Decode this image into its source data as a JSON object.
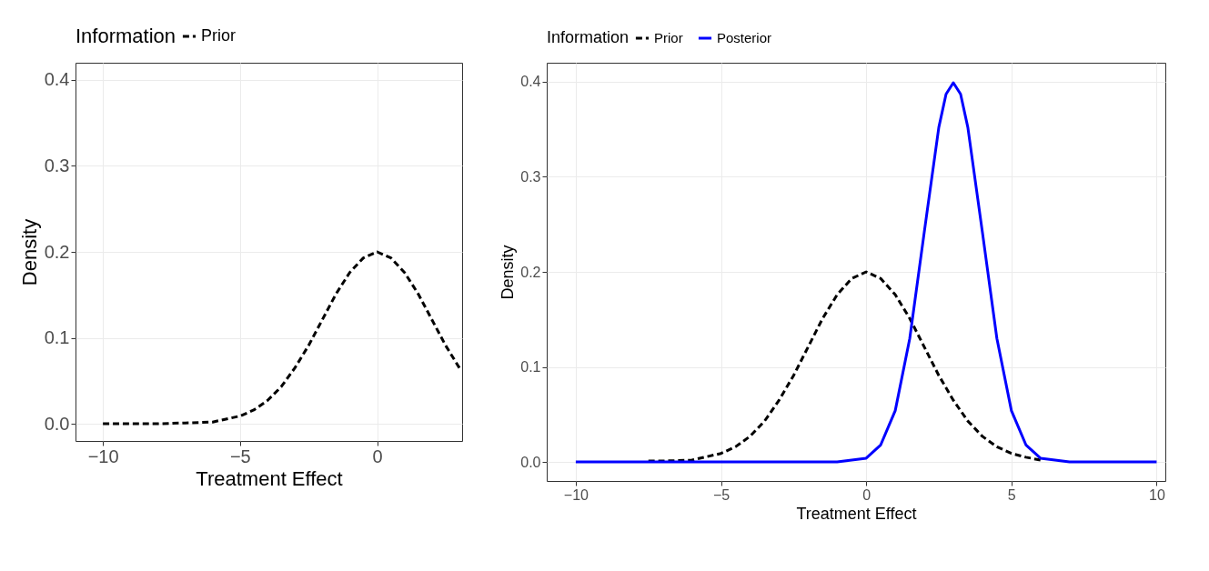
{
  "chart_data": [
    {
      "type": "line",
      "xlabel": "Treatment Effect",
      "ylabel": "Density",
      "legend_title": "Information",
      "legend": "top",
      "grid": true,
      "xlim": [
        -11,
        3.1
      ],
      "ylim": [
        -0.02,
        0.42
      ],
      "xticks": [
        -10,
        -5,
        0
      ],
      "yticks": [
        {
          "value": 0,
          "label": "0.0"
        },
        0.1,
        0.2,
        0.3,
        0.4
      ],
      "series": [
        {
          "name": "Prior",
          "color": "#000000",
          "line_style": "dashed",
          "x": [
            -10,
            -8,
            -7,
            -6,
            -5,
            -4.5,
            -4,
            -3.5,
            -3,
            -2.5,
            -2,
            -1.5,
            -1,
            -0.5,
            0,
            0.5,
            1,
            1.5,
            2,
            2.5,
            3
          ],
          "values": [
            0,
            0,
            0.001,
            0.002,
            0.009,
            0.016,
            0.027,
            0.043,
            0.065,
            0.091,
            0.121,
            0.151,
            0.176,
            0.193,
            0.2,
            0.193,
            0.176,
            0.151,
            0.121,
            0.091,
            0.065
          ]
        }
      ]
    },
    {
      "type": "line",
      "xlabel": "Treatment Effect",
      "ylabel": "Density",
      "legend_title": "Information",
      "legend": "top",
      "grid": true,
      "xlim": [
        -11,
        10.3
      ],
      "ylim": [
        -0.02,
        0.42
      ],
      "xticks": [
        -10,
        -5,
        0,
        5,
        10
      ],
      "yticks": [
        {
          "value": 0,
          "label": "0.0"
        },
        0.1,
        0.2,
        0.3,
        0.4
      ],
      "series": [
        {
          "name": "Prior",
          "color": "#000000",
          "line_style": "dashed",
          "x": [
            -7.5,
            -7,
            -6,
            -5,
            -4.5,
            -4,
            -3.5,
            -3,
            -2.5,
            -2,
            -1.5,
            -1,
            -0.5,
            0,
            0.5,
            1,
            1.5,
            2,
            2.5,
            3,
            3.5,
            4,
            4.5,
            5,
            5.5,
            6
          ],
          "values": [
            0.001,
            0.001,
            0.002,
            0.009,
            0.016,
            0.027,
            0.043,
            0.065,
            0.091,
            0.121,
            0.151,
            0.176,
            0.193,
            0.2,
            0.193,
            0.176,
            0.151,
            0.121,
            0.091,
            0.065,
            0.043,
            0.027,
            0.016,
            0.009,
            0.005,
            0.002
          ]
        },
        {
          "name": "Posterior",
          "color": "#0000ff",
          "line_style": "solid",
          "x": [
            -10,
            -2,
            -1,
            0,
            0.5,
            1,
            1.5,
            2,
            2.5,
            2.75,
            3,
            3.25,
            3.5,
            4,
            4.5,
            5,
            5.5,
            6,
            7,
            10
          ],
          "values": [
            0,
            0,
            0,
            0.004,
            0.018,
            0.054,
            0.13,
            0.242,
            0.352,
            0.387,
            0.399,
            0.387,
            0.352,
            0.242,
            0.13,
            0.054,
            0.018,
            0.004,
            0,
            0
          ]
        }
      ]
    }
  ]
}
